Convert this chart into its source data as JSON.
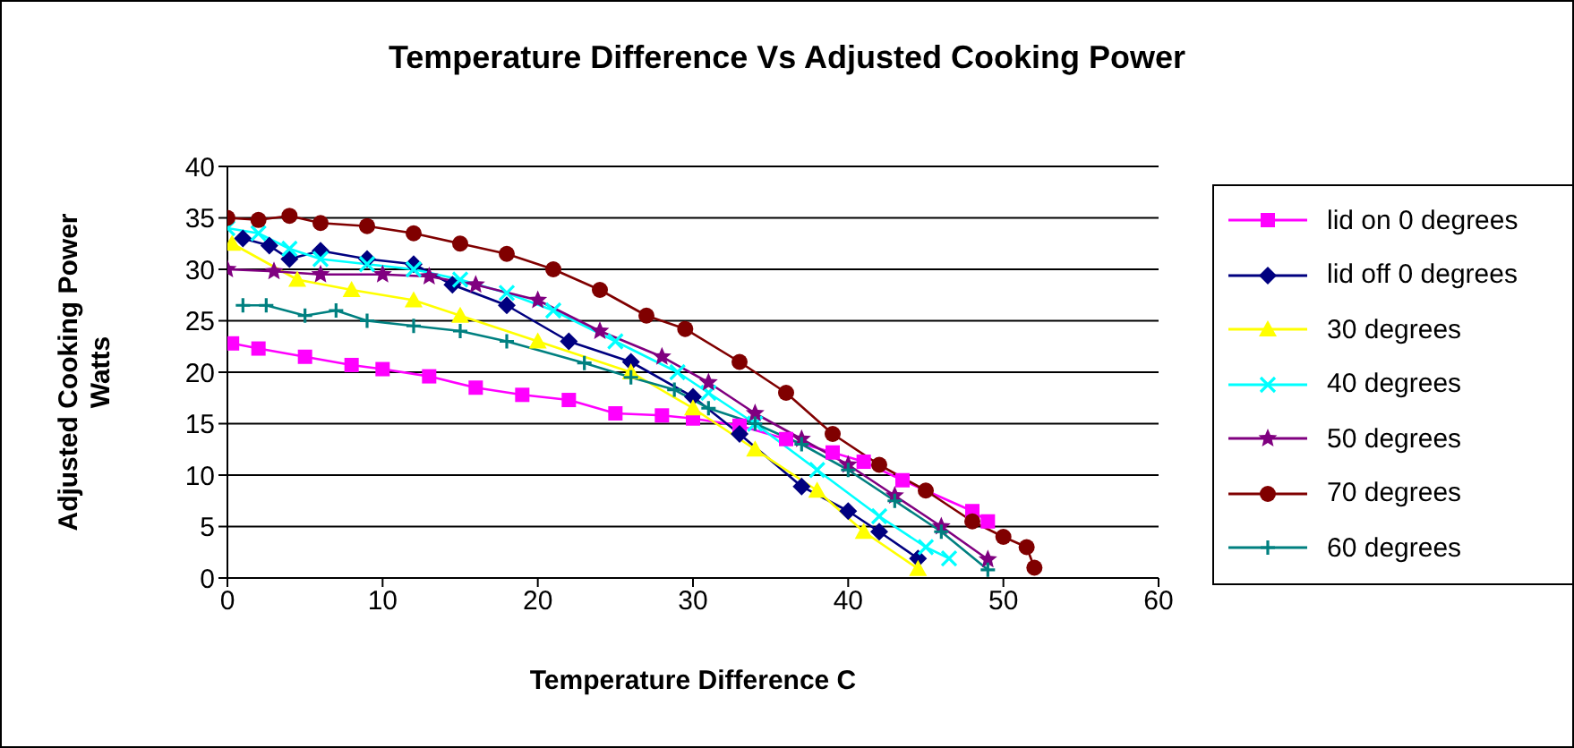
{
  "chart_data": {
    "type": "line",
    "title": "Temperature Difference Vs Adjusted Cooking Power",
    "xlabel": "Temperature Difference C",
    "ylabel": "Adjusted Cooking Power Watts",
    "xlim": [
      0,
      60
    ],
    "xticks": [
      0,
      10,
      20,
      30,
      40,
      50,
      60
    ],
    "ylim": [
      0,
      40
    ],
    "yticks": [
      0,
      5,
      10,
      15,
      20,
      25,
      30,
      35,
      40
    ],
    "grid": "y",
    "legend": "right",
    "line_style": "solid",
    "series": [
      {
        "name": "lid on 0 degrees",
        "color": "#ff00ff",
        "marker": "square",
        "x": [
          0.3,
          2,
          5,
          8,
          10,
          13,
          16,
          19,
          22,
          25,
          28,
          30,
          33,
          36,
          39,
          41,
          43.5,
          48,
          49
        ],
        "values": [
          22.8,
          22.3,
          21.5,
          20.7,
          20.3,
          19.6,
          18.5,
          17.8,
          17.3,
          16,
          15.8,
          15.5,
          14.8,
          13.5,
          12.2,
          11.3,
          9.5,
          6.5,
          5.5
        ]
      },
      {
        "name": "lid off 0 degrees",
        "color": "#000080",
        "marker": "diamond",
        "x": [
          1,
          2.7,
          4,
          6,
          9,
          12,
          14.5,
          18,
          22,
          26,
          30,
          33,
          37,
          40,
          42,
          44.5
        ],
        "values": [
          33,
          32.3,
          31,
          31.8,
          31,
          30.5,
          28.5,
          26.5,
          23,
          21,
          17.6,
          14,
          8.9,
          6.5,
          4.5,
          1.9
        ]
      },
      {
        "name": "30 degrees",
        "color": "#ffff00",
        "marker": "triangle",
        "x": [
          0.3,
          4.5,
          8,
          12,
          15,
          20,
          26,
          30,
          34,
          38,
          41,
          44.5
        ],
        "values": [
          32.5,
          29,
          28,
          27,
          25.5,
          23,
          20,
          16.5,
          12.5,
          8.5,
          4.5,
          0.9
        ]
      },
      {
        "name": "40 degrees",
        "color": "#00ffff",
        "marker": "cross",
        "x": [
          0,
          2,
          4,
          6,
          9,
          12,
          15,
          18,
          21,
          25,
          29,
          31,
          34,
          38,
          42,
          45,
          46.5
        ],
        "values": [
          34,
          33.5,
          32,
          31,
          30.5,
          30,
          29,
          27.7,
          26,
          23,
          20,
          18,
          15,
          10.5,
          6,
          3,
          1.9
        ]
      },
      {
        "name": "50 degrees",
        "color": "#800080",
        "marker": "star",
        "x": [
          0,
          3,
          6,
          10,
          13,
          16,
          20,
          24,
          28,
          31,
          34,
          37,
          40,
          43,
          46,
          49
        ],
        "values": [
          30,
          29.8,
          29.5,
          29.5,
          29.3,
          28.5,
          27,
          24,
          21.5,
          19,
          16,
          13.5,
          11,
          8,
          5,
          1.8
        ]
      },
      {
        "name": "70 degrees",
        "color": "#800000",
        "marker": "circle",
        "x": [
          0,
          2,
          4,
          6,
          9,
          12,
          15,
          18,
          21,
          24,
          27,
          29.5,
          33,
          36,
          39,
          42,
          45,
          48,
          50,
          51.5,
          52
        ],
        "values": [
          35,
          34.8,
          35.2,
          34.5,
          34.2,
          33.5,
          32.5,
          31.5,
          30,
          28,
          25.5,
          24.2,
          21,
          18,
          14,
          11,
          8.5,
          5.5,
          4,
          3,
          1
        ]
      },
      {
        "name": "60 degrees",
        "color": "#008080",
        "marker": "plus",
        "x": [
          1,
          2.5,
          5,
          7,
          9,
          12,
          15,
          18,
          23,
          26,
          28.8,
          31,
          34,
          37,
          40,
          43,
          46,
          49
        ],
        "values": [
          26.5,
          26.5,
          25.5,
          26,
          25,
          24.5,
          24,
          23,
          20.9,
          19.5,
          18.3,
          16.5,
          15,
          13,
          10.5,
          7.5,
          4.5,
          0.8
        ]
      }
    ]
  }
}
